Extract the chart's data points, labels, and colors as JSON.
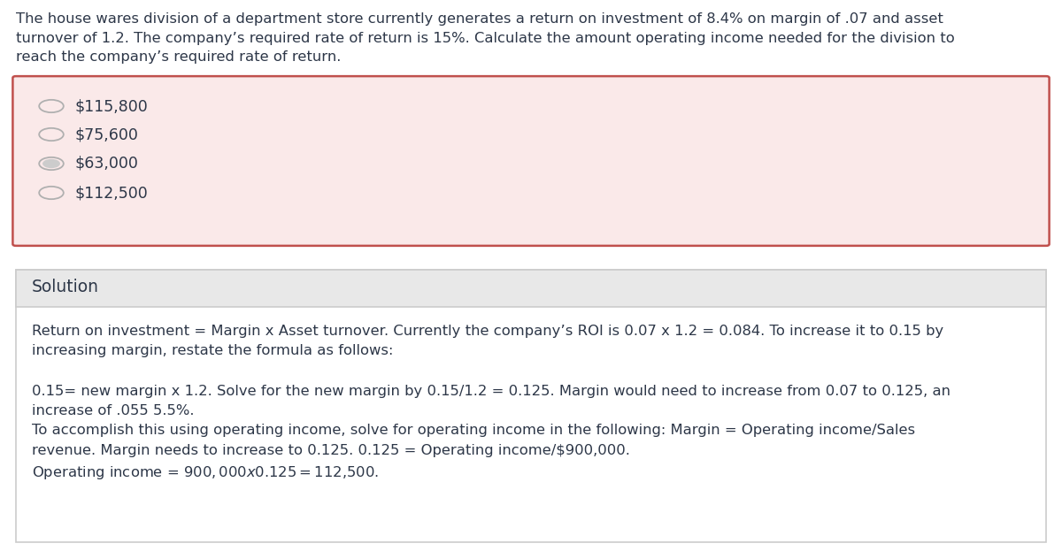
{
  "question_text": "The house wares division of a department store currently generates a return on investment of 8.4% on margin of .07 and asset\nturnover of 1.2. The company’s required rate of return is 15%. Calculate the amount operating income needed for the division to\nreach the company’s required rate of return.",
  "options": [
    "$115,800",
    "$75,600",
    "$63,000",
    "$112,500"
  ],
  "options_box_bg": "#fae9e9",
  "options_box_border": "#c0504d",
  "solution_header": "Solution",
  "solution_header_bg": "#e8e8e8",
  "solution_body_lines": [
    "Return on investment = Margin x Asset turnover. Currently the company’s ROI is 0.07 x 1.2 = 0.084. To increase it to 0.15 by",
    "increasing margin, restate the formula as follows:",
    "",
    "0.15= new margin x 1.2. Solve for the new margin by 0.15/1.2 = 0.125. Margin would need to increase from 0.07 to 0.125, an",
    "increase of .055 5.5%.",
    "To accomplish this using operating income, solve for operating income in the following: Margin = Operating income/Sales",
    "revenue. Margin needs to increase to 0.125. 0.125 = Operating income/$900,000.",
    "Operating income = $900,000 x 0.125 = $112,500."
  ],
  "bg_color": "#ffffff",
  "text_color": "#2d3748",
  "font_size_question": 11.8,
  "font_size_options": 12.5,
  "font_size_solution_header": 13.5,
  "font_size_solution_body": 11.8,
  "radio_selected_index": 2,
  "radio_color_normal": "#b0b0b0",
  "radio_fill_selected": "#cccccc",
  "solution_border_color": "#cccccc"
}
